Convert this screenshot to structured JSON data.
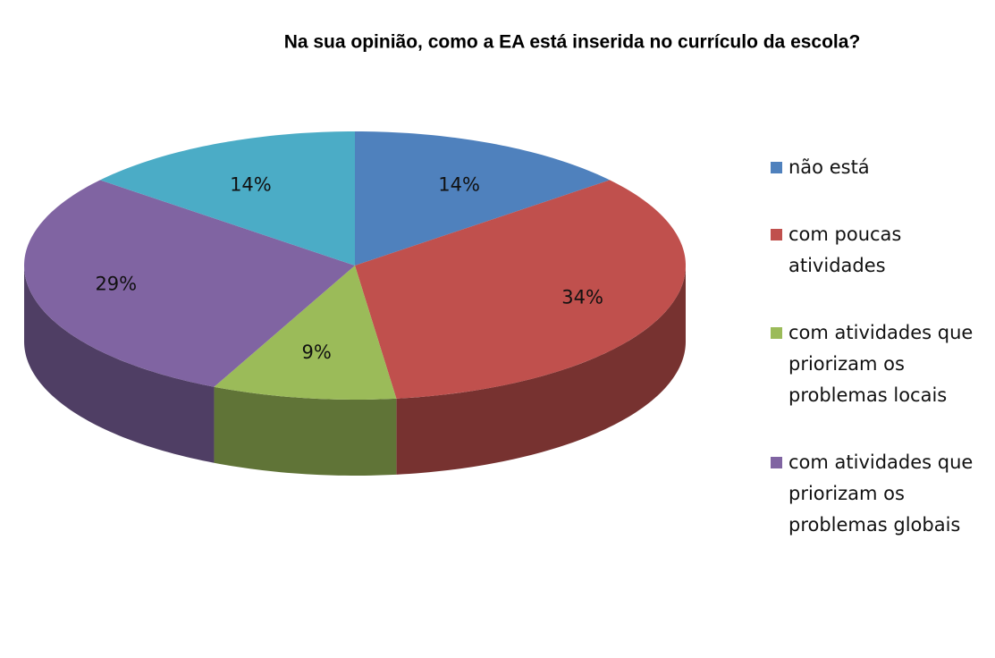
{
  "chart_data": {
    "type": "pie3d",
    "title": "Na sua opinião, como a EA está inserida no currículo da escola?",
    "categories": [
      "não está",
      "com poucas atividades",
      "com atividades que priorizam os problemas locais",
      "com atividades que priorizam os problemas globais",
      null
    ],
    "values": [
      14,
      34,
      9,
      29,
      14
    ],
    "value_labels": [
      "14%",
      "34%",
      "9%",
      "29%",
      "14%"
    ],
    "colors": [
      "#4f81bd",
      "#c0504d",
      "#9bbb59",
      "#8064a2",
      "#4bacc6"
    ],
    "legend": "right"
  }
}
